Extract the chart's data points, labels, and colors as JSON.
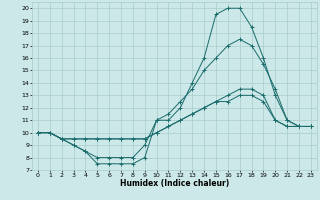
{
  "xlabel": "Humidex (Indice chaleur)",
  "background_color": "#cce8e8",
  "grid_color": "#aacccc",
  "line_color": "#1a6b6b",
  "xlim": [
    -0.5,
    23.5
  ],
  "ylim": [
    7,
    20.5
  ],
  "yticks": [
    7,
    8,
    9,
    10,
    11,
    12,
    13,
    14,
    15,
    16,
    17,
    18,
    19,
    20
  ],
  "xticks": [
    0,
    1,
    2,
    3,
    4,
    5,
    6,
    7,
    8,
    9,
    10,
    11,
    12,
    13,
    14,
    15,
    16,
    17,
    18,
    19,
    20,
    21,
    22,
    23
  ],
  "lines": [
    {
      "x": [
        0,
        1,
        2,
        3,
        4,
        5,
        6,
        7,
        8,
        9,
        10,
        11,
        12,
        13,
        14,
        15,
        16,
        17,
        18,
        19,
        20,
        21,
        22,
        23
      ],
      "y": [
        10,
        10,
        9.5,
        9,
        8.5,
        7.5,
        7.5,
        7.5,
        7.5,
        8,
        11,
        11,
        12,
        14,
        16,
        19.5,
        20,
        20,
        18.5,
        16,
        13,
        11,
        10.5,
        10.5
      ]
    },
    {
      "x": [
        0,
        1,
        2,
        3,
        4,
        5,
        6,
        7,
        8,
        9,
        10,
        11,
        12,
        13,
        14,
        15,
        16,
        17,
        18,
        19,
        20,
        21,
        22,
        23
      ],
      "y": [
        10,
        10,
        9.5,
        9,
        8.5,
        8,
        8,
        8,
        8,
        9,
        11,
        11.5,
        12.5,
        13.5,
        15,
        16,
        17,
        17.5,
        17,
        15.5,
        13.5,
        11,
        10.5,
        10.5
      ]
    },
    {
      "x": [
        0,
        1,
        2,
        3,
        4,
        5,
        6,
        7,
        8,
        9,
        10,
        11,
        12,
        13,
        14,
        15,
        16,
        17,
        18,
        19,
        20,
        21,
        22,
        23
      ],
      "y": [
        10,
        10,
        9.5,
        9.5,
        9.5,
        9.5,
        9.5,
        9.5,
        9.5,
        9.5,
        10,
        10.5,
        11,
        11.5,
        12,
        12.5,
        13,
        13.5,
        13.5,
        13,
        11,
        10.5,
        10.5,
        10.5
      ]
    },
    {
      "x": [
        0,
        1,
        2,
        3,
        4,
        5,
        6,
        7,
        8,
        9,
        10,
        11,
        12,
        13,
        14,
        15,
        16,
        17,
        18,
        19,
        20,
        21,
        22,
        23
      ],
      "y": [
        10,
        10,
        9.5,
        9.5,
        9.5,
        9.5,
        9.5,
        9.5,
        9.5,
        9.5,
        10,
        10.5,
        11,
        11.5,
        12,
        12.5,
        12.5,
        13,
        13,
        12.5,
        11,
        10.5,
        10.5,
        10.5
      ]
    }
  ]
}
